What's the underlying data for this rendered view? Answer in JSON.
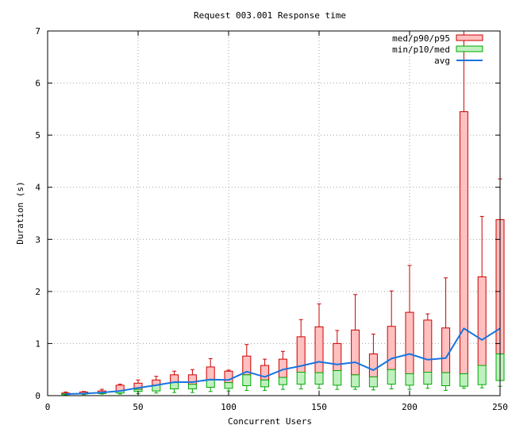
{
  "chart_data": {
    "type": "box",
    "title": "Request 003.001 Response time",
    "xlabel": "Concurrent Users",
    "ylabel": "Duration (s)",
    "xlim": [
      0,
      250
    ],
    "ylim": [
      0,
      7
    ],
    "x_ticks": [
      0,
      50,
      100,
      150,
      200,
      250
    ],
    "y_ticks": [
      0,
      1,
      2,
      3,
      4,
      5,
      6,
      7
    ],
    "grid": true,
    "legend_position": "top-right",
    "colors": {
      "upper_fill": "#ffc0c0",
      "upper_stroke": "#cc0000",
      "lower_fill": "#c0f0c0",
      "lower_stroke": "#00aa00",
      "avg": "#1874e0"
    },
    "legend": [
      {
        "label": "med/p90/p95",
        "kind": "upper"
      },
      {
        "label": "min/p10/med",
        "kind": "lower"
      },
      {
        "label": "avg",
        "kind": "line"
      }
    ],
    "x": [
      10,
      20,
      30,
      40,
      50,
      60,
      70,
      80,
      90,
      100,
      110,
      120,
      130,
      140,
      150,
      160,
      170,
      180,
      190,
      200,
      210,
      220,
      230,
      240,
      250
    ],
    "min": [
      0.01,
      0.02,
      0.03,
      0.03,
      0.04,
      0.05,
      0.06,
      0.06,
      0.08,
      0.09,
      0.1,
      0.1,
      0.12,
      0.13,
      0.14,
      0.12,
      0.12,
      0.11,
      0.13,
      0.12,
      0.14,
      0.1,
      0.14,
      0.15,
      0.18
    ],
    "p10": [
      0.02,
      0.03,
      0.04,
      0.05,
      0.08,
      0.09,
      0.13,
      0.13,
      0.16,
      0.14,
      0.19,
      0.17,
      0.21,
      0.22,
      0.22,
      0.2,
      0.17,
      0.17,
      0.22,
      0.2,
      0.22,
      0.19,
      0.18,
      0.21,
      0.29
    ],
    "median": [
      0.03,
      0.04,
      0.05,
      0.09,
      0.12,
      0.2,
      0.25,
      0.22,
      0.3,
      0.25,
      0.4,
      0.3,
      0.35,
      0.45,
      0.44,
      0.48,
      0.4,
      0.36,
      0.5,
      0.42,
      0.45,
      0.44,
      0.42,
      0.58,
      0.8
    ],
    "p90": [
      0.05,
      0.07,
      0.09,
      0.2,
      0.24,
      0.3,
      0.4,
      0.4,
      0.55,
      0.47,
      0.76,
      0.58,
      0.7,
      1.13,
      1.32,
      1.0,
      1.26,
      0.8,
      1.33,
      1.6,
      1.45,
      1.3,
      5.45,
      2.28,
      3.38
    ],
    "p95": [
      0.07,
      0.08,
      0.12,
      0.22,
      0.3,
      0.37,
      0.47,
      0.5,
      0.71,
      0.49,
      0.98,
      0.7,
      0.85,
      1.46,
      1.76,
      1.25,
      1.94,
      1.18,
      2.01,
      2.5,
      1.57,
      2.26,
      7.0,
      3.44,
      4.16
    ],
    "avg": [
      0.03,
      0.04,
      0.06,
      0.09,
      0.15,
      0.2,
      0.26,
      0.26,
      0.31,
      0.3,
      0.46,
      0.36,
      0.5,
      0.57,
      0.65,
      0.6,
      0.64,
      0.49,
      0.71,
      0.8,
      0.69,
      0.72,
      1.29,
      1.07,
      1.29
    ]
  }
}
